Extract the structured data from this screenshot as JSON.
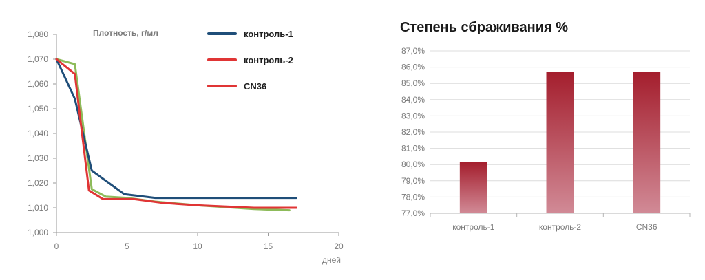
{
  "chart_data": [
    {
      "type": "line",
      "ylabel": "Плотность, г/мл",
      "xlabel": "дней",
      "xlim": [
        0,
        20
      ],
      "ylim": [
        1.0,
        1.08
      ],
      "x_ticks": [
        "0",
        "5",
        "10",
        "15",
        "20"
      ],
      "y_ticks": [
        "1,000",
        "1,010",
        "1,020",
        "1,030",
        "1,040",
        "1,050",
        "1,060",
        "1,070",
        "1,080"
      ],
      "grid": false,
      "legend_position": "top-right",
      "legend": [
        "контроль-1",
        "контроль-2",
        "CN36"
      ],
      "series": [
        {
          "name": "контроль-1",
          "color": "#1f4e79",
          "x": [
            0,
            1.3,
            2.5,
            4.8,
            7,
            10,
            13,
            15,
            17
          ],
          "y": [
            1.07,
            1.054,
            1.025,
            1.0155,
            1.014,
            1.014,
            1.014,
            1.014,
            1.014
          ]
        },
        {
          "name": "контроль-2",
          "color": "#8dbb5a",
          "x": [
            0,
            1.3,
            2.5,
            3.5,
            5,
            7,
            10,
            14,
            16.5
          ],
          "y": [
            1.07,
            1.068,
            1.0175,
            1.0145,
            1.014,
            1.0125,
            1.011,
            1.0095,
            1.009
          ]
        },
        {
          "name": "CN36",
          "color": "#e03535",
          "x": [
            0,
            1.3,
            2.3,
            3.3,
            5.5,
            7.5,
            10,
            14,
            17
          ],
          "y": [
            1.07,
            1.064,
            1.017,
            1.0135,
            1.0135,
            1.012,
            1.011,
            1.01,
            1.01
          ]
        }
      ]
    },
    {
      "type": "bar",
      "title": "Степень сбраживания %",
      "categories": [
        "контроль-1",
        "контроль-2",
        "CN36"
      ],
      "values": [
        80.15,
        85.7,
        85.7
      ],
      "ylim": [
        77,
        87
      ],
      "y_ticks": [
        "77,0%",
        "78,0%",
        "79,0%",
        "80,0%",
        "81,0%",
        "82,0%",
        "83,0%",
        "84,0%",
        "85,0%",
        "86,0%",
        "87,0%"
      ],
      "grid": true,
      "bar_color_top": "#a41e2d",
      "bar_color_bottom": "#d18a96"
    }
  ]
}
